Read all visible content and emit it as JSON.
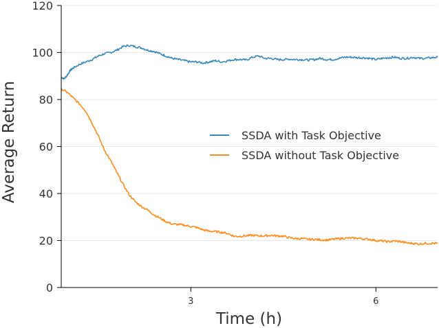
{
  "chart_data": {
    "type": "line",
    "title": "",
    "xlabel": "Time (h)",
    "ylabel": "Average Return",
    "xlim": [
      0.9,
      7.0
    ],
    "ylim": [
      0,
      120
    ],
    "xticks": [
      3,
      6
    ],
    "xtick_labels": [
      "3",
      "6"
    ],
    "yticks": [
      0,
      20,
      40,
      60,
      80,
      100,
      120
    ],
    "ytick_labels": [
      "0",
      "20",
      "40",
      "60",
      "80",
      "100",
      "120"
    ],
    "grid": "horizontal",
    "legend_position": "center-right",
    "series": [
      {
        "name": "SSDA with Task Objective",
        "color": "#3a88b9",
        "x": [
          0.9,
          0.95,
          1.0,
          1.05,
          1.1,
          1.2,
          1.3,
          1.4,
          1.5,
          1.6,
          1.7,
          1.8,
          1.9,
          2.0,
          2.1,
          2.2,
          2.3,
          2.4,
          2.5,
          2.6,
          2.7,
          2.8,
          2.9,
          3.0,
          3.1,
          3.2,
          3.3,
          3.4,
          3.5,
          3.6,
          3.7,
          3.8,
          3.9,
          4.0,
          4.1,
          4.2,
          4.3,
          4.4,
          4.5,
          4.6,
          4.7,
          4.8,
          4.9,
          5.0,
          5.1,
          5.2,
          5.3,
          5.4,
          5.5,
          5.6,
          5.7,
          5.8,
          5.9,
          6.0,
          6.1,
          6.2,
          6.3,
          6.4,
          6.5,
          6.6,
          6.7,
          6.8,
          6.9,
          7.0
        ],
        "values": [
          89.5,
          88.8,
          90.5,
          92.5,
          93.5,
          95.0,
          96.0,
          97.0,
          98.5,
          99.5,
          100.0,
          101.0,
          102.5,
          103.0,
          102.5,
          102.0,
          101.0,
          100.5,
          99.5,
          98.5,
          97.5,
          97.0,
          96.5,
          96.0,
          96.0,
          95.5,
          96.0,
          96.5,
          96.0,
          96.5,
          97.0,
          97.0,
          96.8,
          98.0,
          98.5,
          97.5,
          97.5,
          97.0,
          97.0,
          97.2,
          97.0,
          97.0,
          96.8,
          97.0,
          97.5,
          97.0,
          97.0,
          97.5,
          98.0,
          98.0,
          97.8,
          97.8,
          97.5,
          97.0,
          97.5,
          97.8,
          98.0,
          97.5,
          97.5,
          98.0,
          97.5,
          97.5,
          97.8,
          98.0
        ]
      },
      {
        "name": "SSDA without Task Objective",
        "color": "#ff8c1a",
        "x": [
          0.9,
          1.0,
          1.1,
          1.2,
          1.3,
          1.4,
          1.5,
          1.6,
          1.7,
          1.8,
          1.9,
          2.0,
          2.1,
          2.2,
          2.3,
          2.4,
          2.5,
          2.6,
          2.7,
          2.8,
          2.9,
          3.0,
          3.1,
          3.2,
          3.3,
          3.4,
          3.5,
          3.6,
          3.7,
          3.8,
          3.9,
          4.0,
          4.1,
          4.2,
          4.3,
          4.4,
          4.5,
          4.6,
          4.7,
          4.8,
          4.9,
          5.0,
          5.1,
          5.2,
          5.3,
          5.4,
          5.5,
          5.6,
          5.7,
          5.8,
          5.9,
          6.0,
          6.1,
          6.2,
          6.3,
          6.4,
          6.5,
          6.6,
          6.7,
          6.8,
          6.9,
          7.0
        ],
        "values": [
          84.5,
          83.0,
          80.5,
          78.0,
          75.0,
          70.0,
          64.5,
          58.5,
          54.0,
          49.0,
          44.0,
          39.5,
          36.5,
          34.5,
          33.0,
          31.0,
          29.5,
          28.0,
          27.0,
          26.8,
          26.5,
          26.0,
          25.5,
          24.5,
          24.0,
          23.8,
          23.5,
          23.0,
          21.8,
          21.8,
          22.0,
          22.2,
          22.0,
          22.0,
          22.2,
          22.0,
          21.8,
          21.2,
          20.8,
          20.8,
          20.5,
          20.5,
          20.3,
          20.2,
          20.5,
          20.8,
          21.0,
          21.0,
          21.0,
          20.7,
          20.5,
          20.0,
          19.8,
          19.5,
          19.8,
          19.5,
          19.0,
          18.8,
          18.5,
          18.8,
          18.8,
          18.8
        ]
      }
    ]
  }
}
